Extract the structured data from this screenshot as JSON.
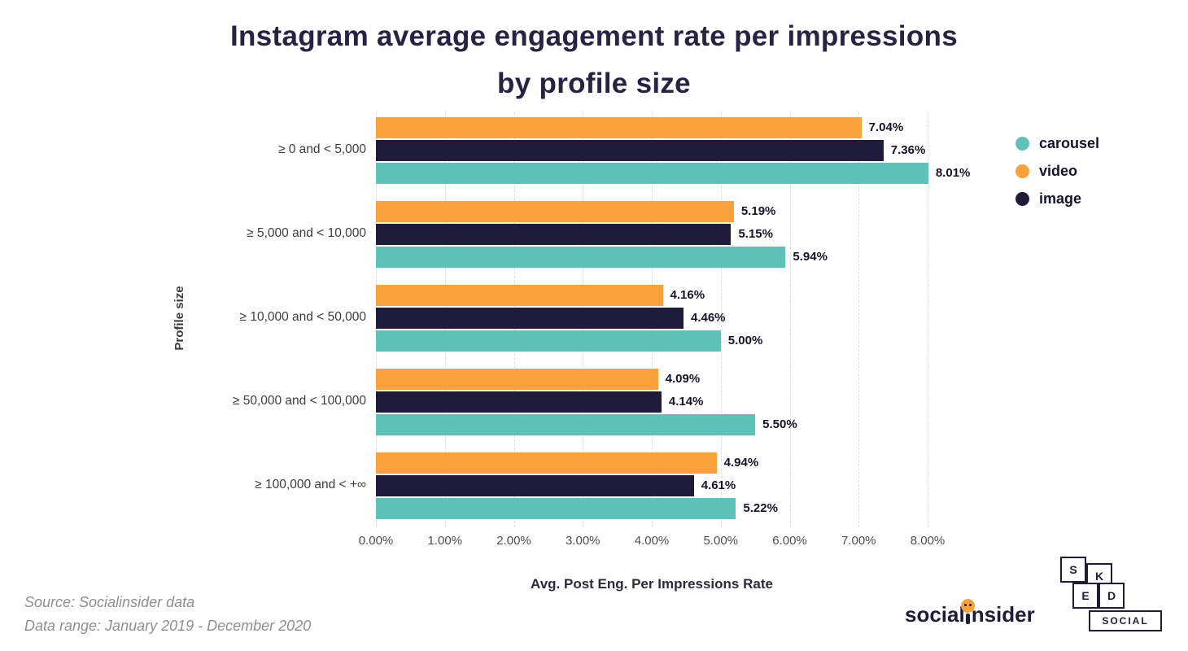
{
  "page": {
    "title_line1": "Instagram average engagement rate per impressions",
    "title_line2": "by profile size"
  },
  "chart_data": {
    "type": "bar",
    "orientation": "horizontal",
    "title": "Instagram average engagement rate per impressions by profile size",
    "xlabel": "Avg. Post Eng. Per Impressions Rate",
    "ylabel": "Profile size",
    "xlim": [
      0,
      8
    ],
    "x_ticks": [
      "0.00%",
      "1.00%",
      "2.00%",
      "3.00%",
      "4.00%",
      "5.00%",
      "6.00%",
      "7.00%",
      "8.00%"
    ],
    "grid": "vertical-dashed",
    "legend_position": "right",
    "categories": [
      "≥ 0 and < 5,000",
      "≥ 5,000 and < 10,000",
      "≥ 10,000 and < 50,000",
      "≥ 50,000 and < 100,000",
      "≥ 100,000 and < +∞"
    ],
    "series": [
      {
        "name": "video",
        "color": "#F9A23B",
        "values": [
          7.04,
          5.19,
          4.16,
          4.09,
          4.94
        ]
      },
      {
        "name": "image",
        "color": "#1E1C3A",
        "values": [
          7.36,
          5.15,
          4.46,
          4.14,
          4.61
        ]
      },
      {
        "name": "carousel",
        "color": "#5FC2BA",
        "values": [
          8.01,
          5.94,
          5.0,
          5.5,
          5.22
        ]
      }
    ],
    "legend": [
      {
        "label": "carousel",
        "color": "#5FC2BA"
      },
      {
        "label": "video",
        "color": "#F9A23B"
      },
      {
        "label": "image",
        "color": "#1E1C3A"
      }
    ],
    "value_labels": true,
    "value_suffix": "%"
  },
  "footer": {
    "source": "Source: Socialinsider data",
    "date_range": "Data range: January 2019 - December 2020"
  },
  "branding": {
    "socialinsider_pre": "social",
    "socialinsider_post": "nsider",
    "sked_letters": [
      "S",
      "K",
      "E",
      "D"
    ],
    "sked_social_label": "SOCIAL",
    "accent_orange": "#F9A23B",
    "accent_teal": "#5FC2BA",
    "accent_dark": "#1E1C3A"
  }
}
